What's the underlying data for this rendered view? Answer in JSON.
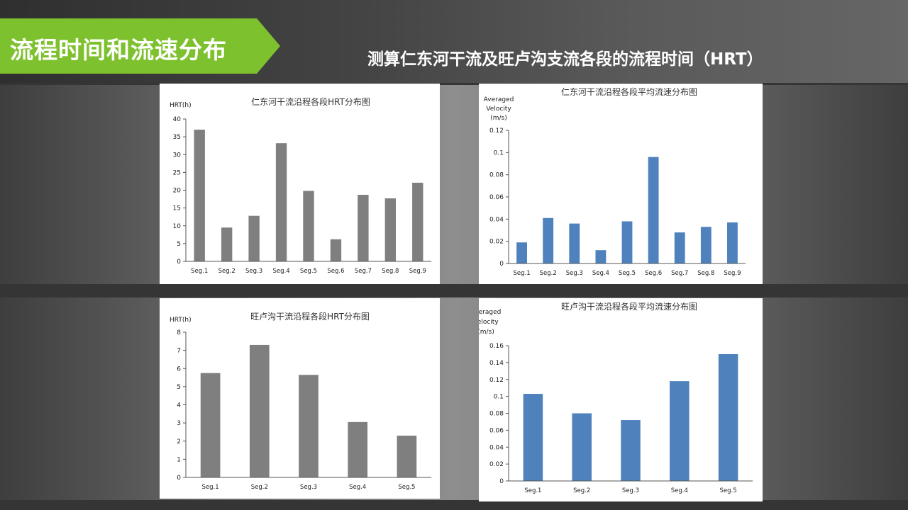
{
  "header": {
    "banner_title": "流程时间和流速分布",
    "subtitle": "测算仁东河干流及旺卢沟支流各段的流程时间（HRT）"
  },
  "colors": {
    "banner": "#7ec12e",
    "gray_bar": "#7f7f7f",
    "blue_bar": "#4f81bd"
  },
  "chart_data": [
    {
      "type": "bar",
      "title": "仁东河干流沿程各段HRT分布图",
      "ylabel": [
        "HRT(h)"
      ],
      "categories": [
        "Seg.1",
        "Seg.2",
        "Seg.3",
        "Seg.4",
        "Seg.5",
        "Seg.6",
        "Seg.7",
        "Seg.8",
        "Seg.9"
      ],
      "values": [
        37,
        9.5,
        12.8,
        33.2,
        19.8,
        6.2,
        18.7,
        17.7,
        22.1
      ],
      "ylim": [
        0,
        40
      ],
      "yticks": [
        "0",
        "5",
        "10",
        "15",
        "20",
        "25",
        "30",
        "35",
        "40"
      ],
      "color": "#7f7f7f"
    },
    {
      "type": "bar",
      "title": "仁东河干流沿程各段平均流速分布图",
      "ylabel": [
        "Averaged",
        "Velocity",
        "(m/s)"
      ],
      "categories": [
        "Seg.1",
        "Seg.2",
        "Seg.3",
        "Seg.4",
        "Seg.5",
        "Seg.6",
        "Seg.7",
        "Seg.8",
        "Seg.9"
      ],
      "values": [
        0.019,
        0.041,
        0.036,
        0.012,
        0.038,
        0.096,
        0.028,
        0.033,
        0.037
      ],
      "ylim": [
        0,
        0.12
      ],
      "yticks": [
        "0",
        "0.02",
        "0.04",
        "0.06",
        "0.08",
        "0.1",
        "0.12"
      ],
      "color": "#4f81bd"
    },
    {
      "type": "bar",
      "title": "旺卢沟干流沿程各段HRT分布图",
      "ylabel": [
        "HRT(h)"
      ],
      "categories": [
        "Seg.1",
        "Seg.2",
        "Seg.3",
        "Seg.4",
        "Seg.5"
      ],
      "values": [
        5.75,
        7.3,
        5.65,
        3.05,
        2.3
      ],
      "ylim": [
        0,
        8
      ],
      "yticks": [
        "0",
        "1",
        "2",
        "3",
        "4",
        "5",
        "6",
        "7",
        "8"
      ],
      "color": "#7f7f7f"
    },
    {
      "type": "bar",
      "title": "旺卢沟干流沿程各段平均流速分布图",
      "ylabel": [
        "Averaged",
        "Velocity",
        "(m/s)"
      ],
      "categories": [
        "Seg.1",
        "Seg.2",
        "Seg.3",
        "Seg.4",
        "Seg.5"
      ],
      "values": [
        0.103,
        0.08,
        0.072,
        0.118,
        0.15
      ],
      "ylim": [
        0,
        0.16
      ],
      "yticks": [
        "0",
        "0.02",
        "0.04",
        "0.06",
        "0.08",
        "0.1",
        "0.12",
        "0.14",
        "0.16"
      ],
      "color": "#4f81bd"
    }
  ]
}
